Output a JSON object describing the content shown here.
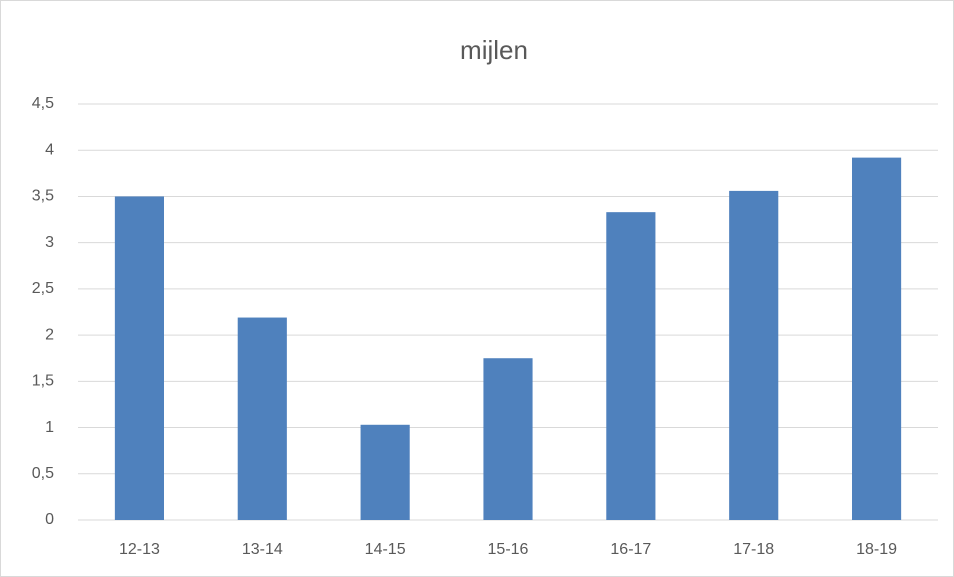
{
  "chart_data": {
    "type": "bar",
    "title": "mijlen",
    "categories": [
      "12-13",
      "13-14",
      "14-15",
      "15-16",
      "16-17",
      "17-18",
      "18-19"
    ],
    "values": [
      3.5,
      2.19,
      1.03,
      1.75,
      3.33,
      3.56,
      3.92
    ],
    "color": "#4f81bd",
    "ylim": [
      0,
      4.5
    ],
    "yticks": [
      0,
      {
        "value": 0.5,
        "label": "0,5"
      },
      1,
      {
        "value": 1.5,
        "label": "1,5"
      },
      2,
      {
        "value": 2.5,
        "label": "2,5"
      },
      3,
      {
        "value": 3.5,
        "label": "3,5"
      },
      4,
      {
        "value": 4.5,
        "label": "4,5"
      }
    ],
    "grid": true
  }
}
